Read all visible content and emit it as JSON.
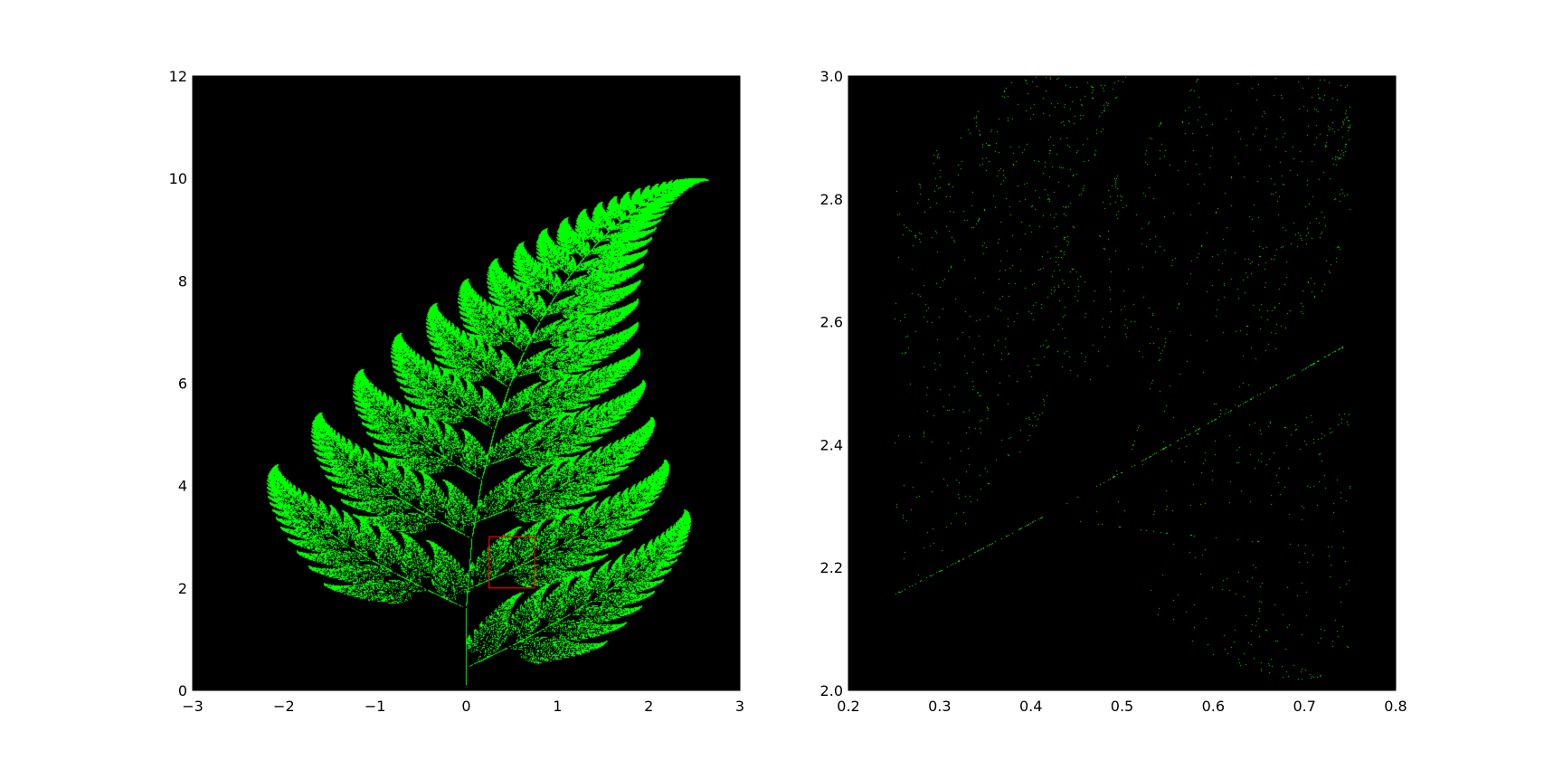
{
  "chart_data": [
    {
      "type": "scatter",
      "title": "",
      "xlabel": "",
      "ylabel": "",
      "xlim": [
        -3,
        3
      ],
      "ylim": [
        0,
        12
      ],
      "xticks": [
        -3,
        -2,
        -1,
        0,
        1,
        2,
        3
      ],
      "xtick_labels": [
        "−3",
        "−2",
        "−1",
        "0",
        "1",
        "2",
        "3"
      ],
      "yticks": [
        0,
        2,
        4,
        6,
        8,
        10,
        12
      ],
      "ytick_labels": [
        "0",
        "2",
        "4",
        "6",
        "8",
        "10",
        "12"
      ],
      "grid": false,
      "legend": "none",
      "background_color": "#000000",
      "point_color": "#00ff00",
      "series_content": "Barnsley fern attractor point cloud",
      "highlight_box": {
        "x0": 0.25,
        "x1": 0.75,
        "y0": 2.0,
        "y1": 3.0,
        "color": "#ff0000"
      }
    },
    {
      "type": "scatter",
      "title": "",
      "xlabel": "",
      "ylabel": "",
      "xlim": [
        0.2,
        0.8
      ],
      "ylim": [
        2.0,
        3.0
      ],
      "xticks": [
        0.2,
        0.3,
        0.4,
        0.5,
        0.6,
        0.7,
        0.8
      ],
      "xtick_labels": [
        "0.2",
        "0.3",
        "0.4",
        "0.5",
        "0.6",
        "0.7",
        "0.8"
      ],
      "yticks": [
        2.0,
        2.2,
        2.4,
        2.6,
        2.8,
        3.0
      ],
      "ytick_labels": [
        "2.0",
        "2.2",
        "2.4",
        "2.6",
        "2.8",
        "3.0"
      ],
      "grid": false,
      "legend": "none",
      "background_color": "#000000",
      "point_color": "#00ff00",
      "series_content": "Barnsley fern attractor zoomed into x 0.25-0.75, y 2.0-3.0",
      "data_x_range": [
        0.25,
        0.75
      ]
    }
  ]
}
